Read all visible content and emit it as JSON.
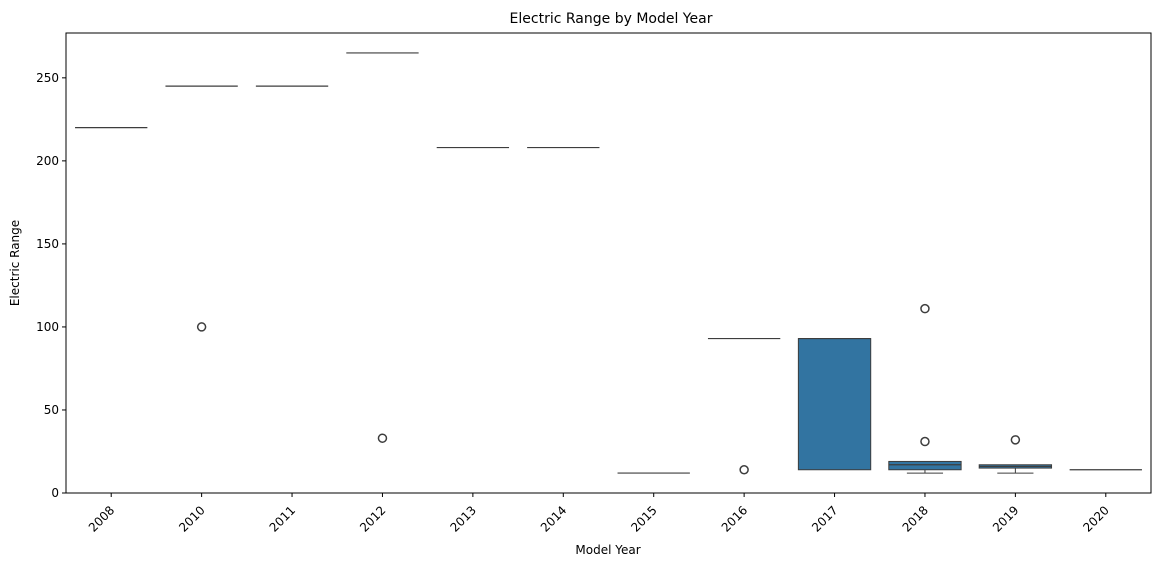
{
  "chart_data": {
    "type": "box",
    "title": "Electric Range by Model Year",
    "xlabel": "Model Year",
    "ylabel": "Electric Range",
    "categories": [
      "2008",
      "2010",
      "2011",
      "2012",
      "2013",
      "2014",
      "2015",
      "2016",
      "2017",
      "2018",
      "2019",
      "2020"
    ],
    "ylim": [
      0,
      277
    ],
    "yticks": [
      0,
      50,
      100,
      150,
      200,
      250
    ],
    "box_color": "#3274a1",
    "boxes": [
      {
        "category": "2008",
        "q1": 220,
        "median": 220,
        "q3": 220,
        "whisker_low": 220,
        "whisker_high": 220,
        "outliers": []
      },
      {
        "category": "2010",
        "q1": 245,
        "median": 245,
        "q3": 245,
        "whisker_low": 245,
        "whisker_high": 245,
        "outliers": [
          100
        ]
      },
      {
        "category": "2011",
        "q1": 245,
        "median": 245,
        "q3": 245,
        "whisker_low": 245,
        "whisker_high": 245,
        "outliers": []
      },
      {
        "category": "2012",
        "q1": 265,
        "median": 265,
        "q3": 265,
        "whisker_low": 265,
        "whisker_high": 265,
        "outliers": [
          33
        ]
      },
      {
        "category": "2013",
        "q1": 208,
        "median": 208,
        "q3": 208,
        "whisker_low": 208,
        "whisker_high": 208,
        "outliers": []
      },
      {
        "category": "2014",
        "q1": 208,
        "median": 208,
        "q3": 208,
        "whisker_low": 208,
        "whisker_high": 208,
        "outliers": []
      },
      {
        "category": "2015",
        "q1": 12,
        "median": 12,
        "q3": 12,
        "whisker_low": 12,
        "whisker_high": 12,
        "outliers": []
      },
      {
        "category": "2016",
        "q1": 93,
        "median": 93,
        "q3": 93,
        "whisker_low": 93,
        "whisker_high": 93,
        "outliers": [
          14
        ]
      },
      {
        "category": "2017",
        "q1": 14,
        "median": 93,
        "q3": 93,
        "whisker_low": 14,
        "whisker_high": 93,
        "outliers": []
      },
      {
        "category": "2018",
        "q1": 14,
        "median": 17,
        "q3": 19,
        "whisker_low": 12,
        "whisker_high": 19,
        "outliers": [
          111,
          31
        ]
      },
      {
        "category": "2019",
        "q1": 15,
        "median": 16,
        "q3": 17,
        "whisker_low": 12,
        "whisker_high": 17,
        "outliers": [
          32
        ]
      },
      {
        "category": "2020",
        "q1": 14,
        "median": 14,
        "q3": 14,
        "whisker_low": 14,
        "whisker_high": 14,
        "outliers": []
      }
    ]
  }
}
